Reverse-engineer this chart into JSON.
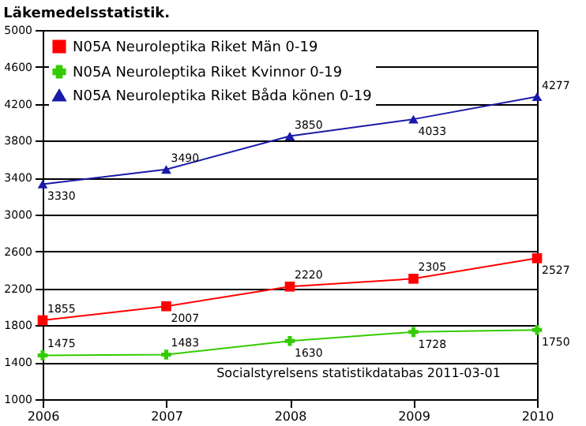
{
  "chart_data": {
    "type": "line",
    "title": "Läkemedelsstatistik.",
    "x": [
      2006,
      2007,
      2008,
      2009,
      2010
    ],
    "xlim": [
      2006,
      2010
    ],
    "xticks": [
      2006,
      2007,
      2008,
      2009,
      2010
    ],
    "ylim": [
      1000,
      5000
    ],
    "yticks": [
      1000,
      1400,
      1800,
      2200,
      2600,
      3000,
      3400,
      3800,
      4200,
      4600,
      5000
    ],
    "grid": "y",
    "legend": "top left",
    "data_labels": true,
    "annotations": [
      "Socialstyrelsens statistikdatabas   2011-03-01"
    ],
    "series": [
      {
        "name": "N05A Neuroleptika Riket Män 0-19",
        "color": "#ff0000",
        "marker": "square",
        "values": [
          1855,
          2007,
          2220,
          2305,
          2527
        ]
      },
      {
        "name": "N05A Neuroleptika Riket Kvinnor 0-19",
        "color": "#33cc00",
        "marker": "cross",
        "values": [
          1475,
          1483,
          1630,
          1728,
          1750
        ]
      },
      {
        "name": "N05A Neuroleptika Riket Båda könen 0-19",
        "color": "#1a1aaa",
        "marker": "triangle",
        "values": [
          3330,
          3490,
          3850,
          4033,
          4277
        ]
      }
    ]
  }
}
